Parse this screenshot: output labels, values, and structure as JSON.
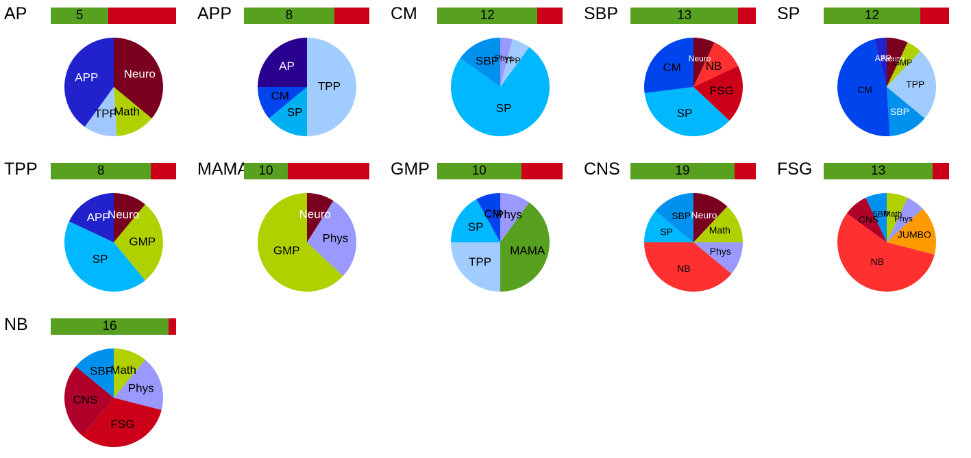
{
  "colors": {
    "bar_good": "#58a020",
    "bar_bad": "#cc0018",
    "label_dark": "#000000",
    "label_light": "#ffffff"
  },
  "chart_data": [
    {
      "type": "pie",
      "title": "AP",
      "bar": {
        "count": 5,
        "good_fraction": 0.46
      },
      "slices": [
        {
          "label": "Neuro",
          "value": 36,
          "color": "#7a0020",
          "label_color": "#ffffff"
        },
        {
          "label": "Math",
          "value": 13,
          "color": "#b0d000"
        },
        {
          "label": "TPP",
          "value": 11,
          "color": "#a0c8ff"
        },
        {
          "label": "APP",
          "value": 40,
          "color": "#2222cc",
          "label_color": "#ffffff"
        }
      ]
    },
    {
      "type": "pie",
      "title": "APP",
      "bar": {
        "count": 8,
        "good_fraction": 0.72
      },
      "slices": [
        {
          "label": "TPP",
          "value": 50,
          "color": "#a0ccff"
        },
        {
          "label": "SP",
          "value": 14,
          "color": "#00b0f0"
        },
        {
          "label": "CM",
          "value": 11,
          "color": "#0044ee"
        },
        {
          "label": "AP",
          "value": 25,
          "color": "#2a0090",
          "label_color": "#ffffff"
        }
      ]
    },
    {
      "type": "pie",
      "title": "CM",
      "bar": {
        "count": 12,
        "good_fraction": 0.8
      },
      "slices": [
        {
          "label": "Phys",
          "value": 4,
          "color": "#9999ff"
        },
        {
          "label": "TPP",
          "value": 6,
          "color": "#a0ccff"
        },
        {
          "label": "SP",
          "value": 75,
          "color": "#00b8ff"
        },
        {
          "label": "SBP",
          "value": 15,
          "color": "#0090ee"
        }
      ]
    },
    {
      "type": "pie",
      "title": "SBP",
      "bar": {
        "count": 13,
        "good_fraction": 0.86
      },
      "slices": [
        {
          "label": "Neuro",
          "value": 7,
          "color": "#7a0020",
          "label_color": "#ffffff"
        },
        {
          "label": "NB",
          "value": 11,
          "color": "#ff3030"
        },
        {
          "label": "FSG",
          "value": 19,
          "color": "#cc0018"
        },
        {
          "label": "SP",
          "value": 36,
          "color": "#00b8ff"
        },
        {
          "label": "CM",
          "value": 27,
          "color": "#0044ee"
        }
      ]
    },
    {
      "type": "pie",
      "title": "SP",
      "bar": {
        "count": 12,
        "good_fraction": 0.77
      },
      "slices": [
        {
          "label": "Neuro",
          "value": 7,
          "color": "#7a0020",
          "label_color": "#ffffff"
        },
        {
          "label": "GMP",
          "value": 5,
          "color": "#b0d000"
        },
        {
          "label": "TPP",
          "value": 24,
          "color": "#a0ccff"
        },
        {
          "label": "SBP",
          "value": 13,
          "color": "#0090ee",
          "label_color": "#ffffff"
        },
        {
          "label": "CM",
          "value": 47,
          "color": "#0044ee"
        },
        {
          "label": "APP",
          "value": 4,
          "color": "#2222cc",
          "label_color": "#ffffff"
        }
      ]
    },
    {
      "type": "pie",
      "title": "TPP",
      "bar": {
        "count": 8,
        "good_fraction": 0.8
      },
      "slices": [
        {
          "label": "Neuro",
          "value": 11,
          "color": "#7a0020",
          "label_color": "#ffffff"
        },
        {
          "label": "GMP",
          "value": 28,
          "color": "#b0d000"
        },
        {
          "label": "SP",
          "value": 43,
          "color": "#00b8ff"
        },
        {
          "label": "APP",
          "value": 18,
          "color": "#2222cc",
          "label_color": "#ffffff"
        }
      ]
    },
    {
      "type": "pie",
      "title": "MAMA",
      "bar": {
        "count": 10,
        "good_fraction": 0.35
      },
      "slices": [
        {
          "label": "Neuro",
          "value": 9,
          "color": "#7a0020",
          "label_color": "#ffffff"
        },
        {
          "label": "Phys",
          "value": 28,
          "color": "#9999ff"
        },
        {
          "label": "GMP",
          "value": 63,
          "color": "#b0d000"
        }
      ]
    },
    {
      "type": "pie",
      "title": "GMP",
      "bar": {
        "count": 10,
        "good_fraction": 0.67
      },
      "slices": [
        {
          "label": "Phys",
          "value": 10,
          "color": "#9999ff"
        },
        {
          "label": "MAMA",
          "value": 40,
          "color": "#58a020"
        },
        {
          "label": "TPP",
          "value": 25,
          "color": "#a0ccff"
        },
        {
          "label": "SP",
          "value": 17,
          "color": "#00b8ff"
        },
        {
          "label": "CM",
          "value": 8,
          "color": "#0044ee"
        }
      ]
    },
    {
      "type": "pie",
      "title": "CNS",
      "bar": {
        "count": 19,
        "good_fraction": 0.83
      },
      "slices": [
        {
          "label": "Neuro",
          "value": 12,
          "color": "#7a0020",
          "label_color": "#ffffff"
        },
        {
          "label": "Math",
          "value": 13,
          "color": "#b0d000"
        },
        {
          "label": "Phys",
          "value": 11,
          "color": "#9999ff"
        },
        {
          "label": "NB",
          "value": 39,
          "color": "#ff3030"
        },
        {
          "label": "SP",
          "value": 11,
          "color": "#00b8ff"
        },
        {
          "label": "SBP",
          "value": 14,
          "color": "#0090ee"
        }
      ]
    },
    {
      "type": "pie",
      "title": "FSG",
      "bar": {
        "count": 13,
        "good_fraction": 0.87
      },
      "slices": [
        {
          "label": "Math",
          "value": 7,
          "color": "#b0d000"
        },
        {
          "label": "Phys",
          "value": 6,
          "color": "#9999ff"
        },
        {
          "label": "JUMBO",
          "value": 16,
          "color": "#ff9a00"
        },
        {
          "label": "NB",
          "value": 56,
          "color": "#ff3030"
        },
        {
          "label": "CNS",
          "value": 8,
          "color": "#b0002a"
        },
        {
          "label": "SBP",
          "value": 7,
          "color": "#0090ee"
        }
      ]
    },
    {
      "type": "pie",
      "title": "NB",
      "bar": {
        "count": 16,
        "good_fraction": 0.94
      },
      "slices": [
        {
          "label": "Math",
          "value": 11,
          "color": "#b0d000"
        },
        {
          "label": "Phys",
          "value": 18,
          "color": "#9999ff"
        },
        {
          "label": "FSG",
          "value": 32,
          "color": "#cc0018"
        },
        {
          "label": "CNS",
          "value": 25,
          "color": "#b0002a"
        },
        {
          "label": "SBP",
          "value": 14,
          "color": "#0090ee"
        }
      ]
    }
  ]
}
